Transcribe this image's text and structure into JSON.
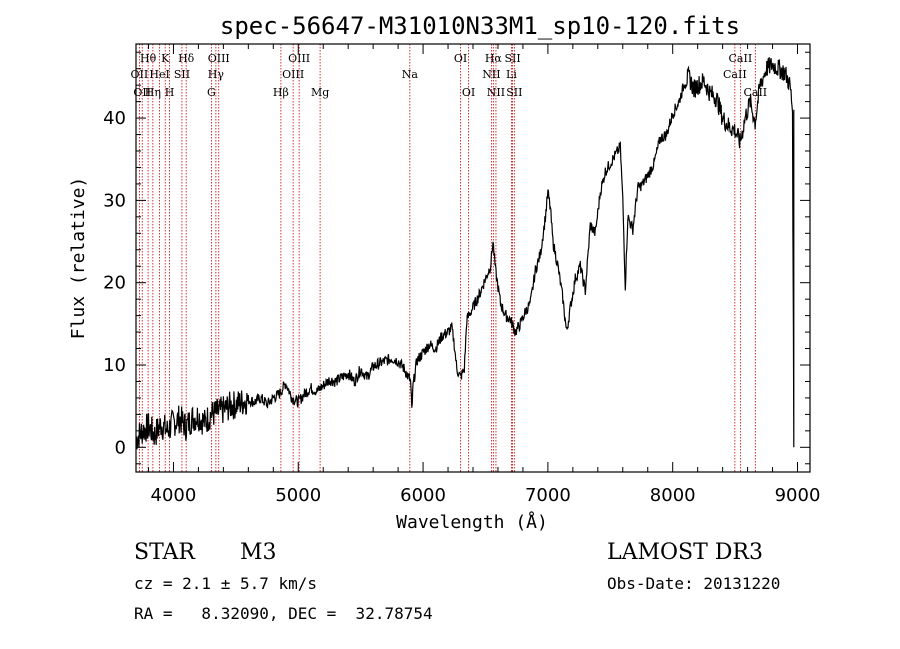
{
  "chart_data": {
    "type": "line",
    "title": "spec-56647-M31010N33M1_sp10-120.fits",
    "xlabel": "Wavelength (Å)",
    "ylabel": "Flux (relative)",
    "xlim": [
      3700,
      9100
    ],
    "ylim": [
      -3,
      49
    ],
    "xticks": [
      4000,
      5000,
      6000,
      7000,
      8000,
      9000
    ],
    "yticks": [
      0,
      10,
      20,
      30,
      40
    ],
    "series": [
      {
        "name": "flux",
        "points": [
          [
            3700,
            1.0
          ],
          [
            3750,
            2.0
          ],
          [
            3800,
            2.5
          ],
          [
            3850,
            1.5
          ],
          [
            3900,
            2.8
          ],
          [
            3950,
            2.0
          ],
          [
            4000,
            3.0
          ],
          [
            4050,
            3.5
          ],
          [
            4100,
            2.5
          ],
          [
            4150,
            3.5
          ],
          [
            4200,
            3.8
          ],
          [
            4250,
            3.0
          ],
          [
            4300,
            4.0
          ],
          [
            4350,
            4.2
          ],
          [
            4400,
            4.5
          ],
          [
            4450,
            5.0
          ],
          [
            4500,
            5.2
          ],
          [
            4550,
            5.5
          ],
          [
            4600,
            5.8
          ],
          [
            4650,
            5.5
          ],
          [
            4700,
            6.0
          ],
          [
            4750,
            5.2
          ],
          [
            4800,
            6.0
          ],
          [
            4850,
            6.5
          ],
          [
            4900,
            7.8
          ],
          [
            4950,
            6.0
          ],
          [
            5000,
            5.5
          ],
          [
            5050,
            6.5
          ],
          [
            5100,
            7.2
          ],
          [
            5150,
            6.8
          ],
          [
            5200,
            7.5
          ],
          [
            5250,
            8.2
          ],
          [
            5300,
            8.0
          ],
          [
            5350,
            8.5
          ],
          [
            5400,
            9.0
          ],
          [
            5450,
            8.0
          ],
          [
            5500,
            9.5
          ],
          [
            5550,
            8.5
          ],
          [
            5600,
            9.8
          ],
          [
            5650,
            10.2
          ],
          [
            5700,
            10.5
          ],
          [
            5750,
            10.8
          ],
          [
            5800,
            10.5
          ],
          [
            5850,
            9.5
          ],
          [
            5900,
            8.0
          ],
          [
            5910,
            4.5
          ],
          [
            5920,
            7.5
          ],
          [
            5950,
            10.5
          ],
          [
            6000,
            11.5
          ],
          [
            6050,
            12.5
          ],
          [
            6100,
            12.0
          ],
          [
            6150,
            13.5
          ],
          [
            6200,
            14.0
          ],
          [
            6230,
            14.5
          ],
          [
            6250,
            12.5
          ],
          [
            6270,
            9.5
          ],
          [
            6300,
            8.5
          ],
          [
            6330,
            9.5
          ],
          [
            6350,
            15.5
          ],
          [
            6400,
            17.0
          ],
          [
            6450,
            18.5
          ],
          [
            6500,
            20.5
          ],
          [
            6540,
            22.0
          ],
          [
            6560,
            25.0
          ],
          [
            6580,
            21.5
          ],
          [
            6620,
            17.5
          ],
          [
            6660,
            16.0
          ],
          [
            6700,
            15.5
          ],
          [
            6740,
            14.0
          ],
          [
            6780,
            15.0
          ],
          [
            6820,
            16.5
          ],
          [
            6860,
            17.5
          ],
          [
            6900,
            21.5
          ],
          [
            6940,
            23.5
          ],
          [
            6980,
            28.0
          ],
          [
            7000,
            31.0
          ],
          [
            7020,
            29.0
          ],
          [
            7040,
            25.0
          ],
          [
            7080,
            22.0
          ],
          [
            7120,
            18.0
          ],
          [
            7150,
            14.0
          ],
          [
            7180,
            17.0
          ],
          [
            7220,
            20.5
          ],
          [
            7260,
            22.0
          ],
          [
            7300,
            19.0
          ],
          [
            7340,
            27.0
          ],
          [
            7380,
            26.0
          ],
          [
            7420,
            31.0
          ],
          [
            7460,
            33.5
          ],
          [
            7500,
            34.5
          ],
          [
            7540,
            35.5
          ],
          [
            7580,
            36.5
          ],
          [
            7600,
            30.0
          ],
          [
            7620,
            19.5
          ],
          [
            7640,
            28.0
          ],
          [
            7680,
            26.5
          ],
          [
            7720,
            31.5
          ],
          [
            7760,
            32.0
          ],
          [
            7800,
            33.0
          ],
          [
            7850,
            34.5
          ],
          [
            7900,
            37.5
          ],
          [
            7950,
            38.0
          ],
          [
            8000,
            40.5
          ],
          [
            8050,
            42.0
          ],
          [
            8100,
            44.5
          ],
          [
            8130,
            45.0
          ],
          [
            8170,
            43.5
          ],
          [
            8200,
            44.0
          ],
          [
            8250,
            44.5
          ],
          [
            8300,
            43.0
          ],
          [
            8350,
            42.5
          ],
          [
            8400,
            40.0
          ],
          [
            8450,
            39.0
          ],
          [
            8500,
            38.5
          ],
          [
            8540,
            37.0
          ],
          [
            8580,
            40.0
          ],
          [
            8620,
            42.0
          ],
          [
            8660,
            39.5
          ],
          [
            8700,
            44.0
          ],
          [
            8750,
            46.0
          ],
          [
            8800,
            46.5
          ],
          [
            8850,
            46.0
          ],
          [
            8900,
            45.5
          ],
          [
            8940,
            44.0
          ],
          [
            8960,
            41.0
          ],
          [
            8970,
            0.0
          ]
        ]
      }
    ],
    "line_markers": [
      {
        "wl": 3727,
        "label": "OII",
        "row": 2
      },
      {
        "wl": 3750,
        "label": "OII",
        "row": 3
      },
      {
        "wl": 3797,
        "label": "Hθ",
        "row": 1
      },
      {
        "wl": 3835,
        "label": "Hη",
        "row": 3
      },
      {
        "wl": 3889,
        "label": "HeI",
        "row": 2
      },
      {
        "wl": 3934,
        "label": "K",
        "row": 1
      },
      {
        "wl": 3969,
        "label": "H",
        "row": 3
      },
      {
        "wl": 4068,
        "label": "SII",
        "row": 2
      },
      {
        "wl": 4102,
        "label": "Hδ",
        "row": 1
      },
      {
        "wl": 4304,
        "label": "G",
        "row": 3
      },
      {
        "wl": 4340,
        "label": "Hγ",
        "row": 2
      },
      {
        "wl": 4363,
        "label": "OIII",
        "row": 1
      },
      {
        "wl": 4861,
        "label": "Hβ",
        "row": 3
      },
      {
        "wl": 4959,
        "label": "OIII",
        "row": 2
      },
      {
        "wl": 5007,
        "label": "OIII",
        "row": 1
      },
      {
        "wl": 5175,
        "label": "Mg",
        "row": 3
      },
      {
        "wl": 5894,
        "label": "Na",
        "row": 2
      },
      {
        "wl": 6300,
        "label": "OI",
        "row": 1
      },
      {
        "wl": 6364,
        "label": "OI",
        "row": 3
      },
      {
        "wl": 6548,
        "label": "NII",
        "row": 2
      },
      {
        "wl": 6563,
        "label": "Hα",
        "row": 1
      },
      {
        "wl": 6584,
        "label": "NII",
        "row": 3
      },
      {
        "wl": 6708,
        "label": "Li",
        "row": 2
      },
      {
        "wl": 6717,
        "label": "SII",
        "row": 1
      },
      {
        "wl": 6731,
        "label": "SII",
        "row": 3
      },
      {
        "wl": 8498,
        "label": "CaII",
        "row": 2
      },
      {
        "wl": 8542,
        "label": "CaII",
        "row": 1
      },
      {
        "wl": 8662,
        "label": "CaII",
        "row": 3
      }
    ],
    "marker_color": "#cc0000",
    "line_color": "#000000"
  },
  "info": {
    "class": "STAR",
    "subclass": "M3",
    "survey": "LAMOST DR3",
    "cz": "cz = 2.1 ± 5.7 km/s",
    "obs_date": "Obs-Date: 20131220",
    "radec": "RA =   8.32090, DEC =  32.78754"
  }
}
